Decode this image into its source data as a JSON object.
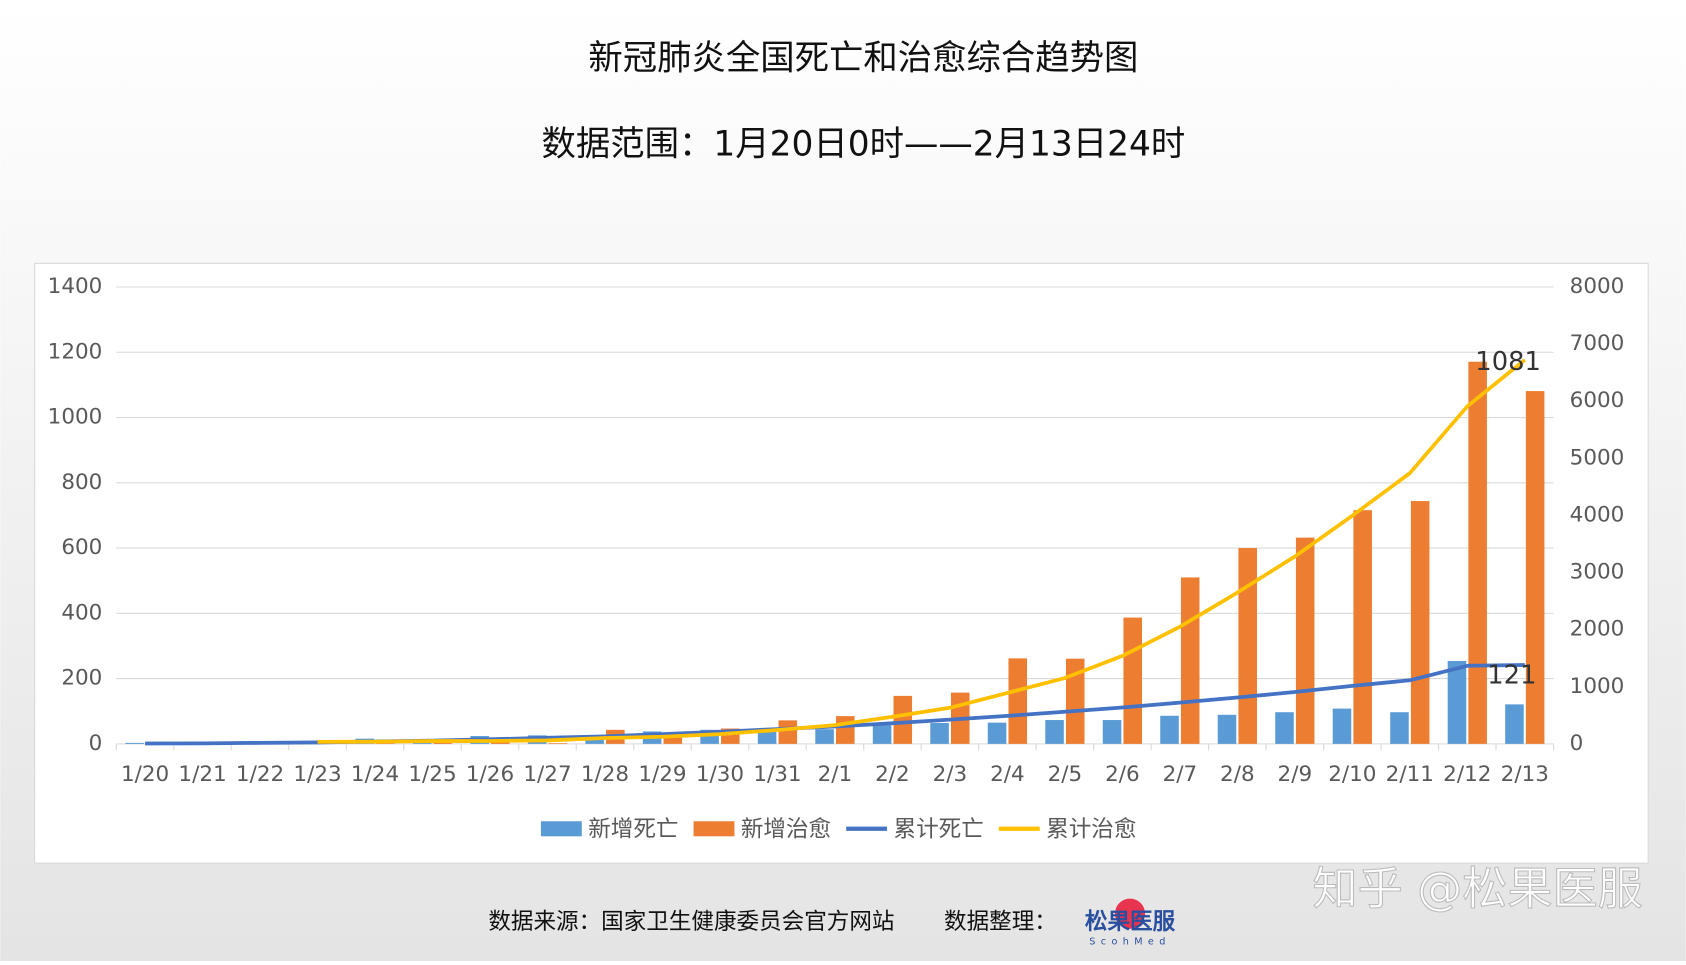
{
  "chart_data": {
    "type": "bar_line",
    "title": "新冠肺炎全国死亡和治愈综合趋势图",
    "subtitle": "数据范围：1月20日0时——2月13日24时",
    "categories": [
      "1/20",
      "1/21",
      "1/22",
      "1/23",
      "1/24",
      "1/25",
      "1/26",
      "1/27",
      "1/28",
      "1/29",
      "1/30",
      "1/31",
      "2/1",
      "2/2",
      "2/3",
      "2/4",
      "2/5",
      "2/6",
      "2/7",
      "2/8",
      "2/9",
      "2/10",
      "2/11",
      "2/12",
      "2/13"
    ],
    "series": [
      {
        "name": "新增死亡",
        "type": "bar",
        "color": "#5b9bd5",
        "values": [
          3,
          3,
          8,
          8,
          16,
          15,
          24,
          26,
          26,
          38,
          43,
          46,
          45,
          57,
          64,
          65,
          73,
          73,
          86,
          89,
          97,
          108,
          97,
          254,
          121
        ]
      },
      {
        "name": "新增治愈",
        "type": "bar",
        "color": "#ed7d31",
        "values": [
          0,
          0,
          0,
          6,
          3,
          11,
          9,
          2,
          43,
          21,
          47,
          72,
          85,
          147,
          157,
          262,
          261,
          387,
          510,
          600,
          632,
          716,
          744,
          1171,
          1081
        ]
      },
      {
        "name": "累计死亡",
        "type": "line",
        "axis": "y2",
        "color": "#4472c4",
        "values": [
          6,
          9,
          17,
          25,
          41,
          56,
          80,
          106,
          132,
          170,
          213,
          259,
          304,
          361,
          425,
          490,
          563,
          636,
          722,
          811,
          908,
          1016,
          1113,
          1367,
          1380
        ]
      },
      {
        "name": "累计治愈",
        "type": "line",
        "axis": "y2",
        "color": "#ffc000",
        "values": [
          null,
          null,
          null,
          34,
          38,
          49,
          51,
          60,
          103,
          124,
          171,
          243,
          328,
          475,
          632,
          892,
          1153,
          1540,
          2050,
          2649,
          3281,
          3996,
          4740,
          5911,
          6723
        ]
      }
    ],
    "ylim": [
      0,
      1400
    ],
    "yticks": [
      0,
      200,
      400,
      600,
      800,
      1000,
      1200,
      1400
    ],
    "y2lim": [
      0,
      8000
    ],
    "y2ticks": [
      0,
      1000,
      2000,
      3000,
      4000,
      5000,
      6000,
      7000,
      8000
    ],
    "grid": true,
    "legend": "bottom",
    "source": "数据来源：国家卫生健康委员会官方网站",
    "organizer": "数据整理：",
    "logo": "松果医服",
    "logo_sub": "ScohMed",
    "watermark": "知乎 @松果医服"
  }
}
